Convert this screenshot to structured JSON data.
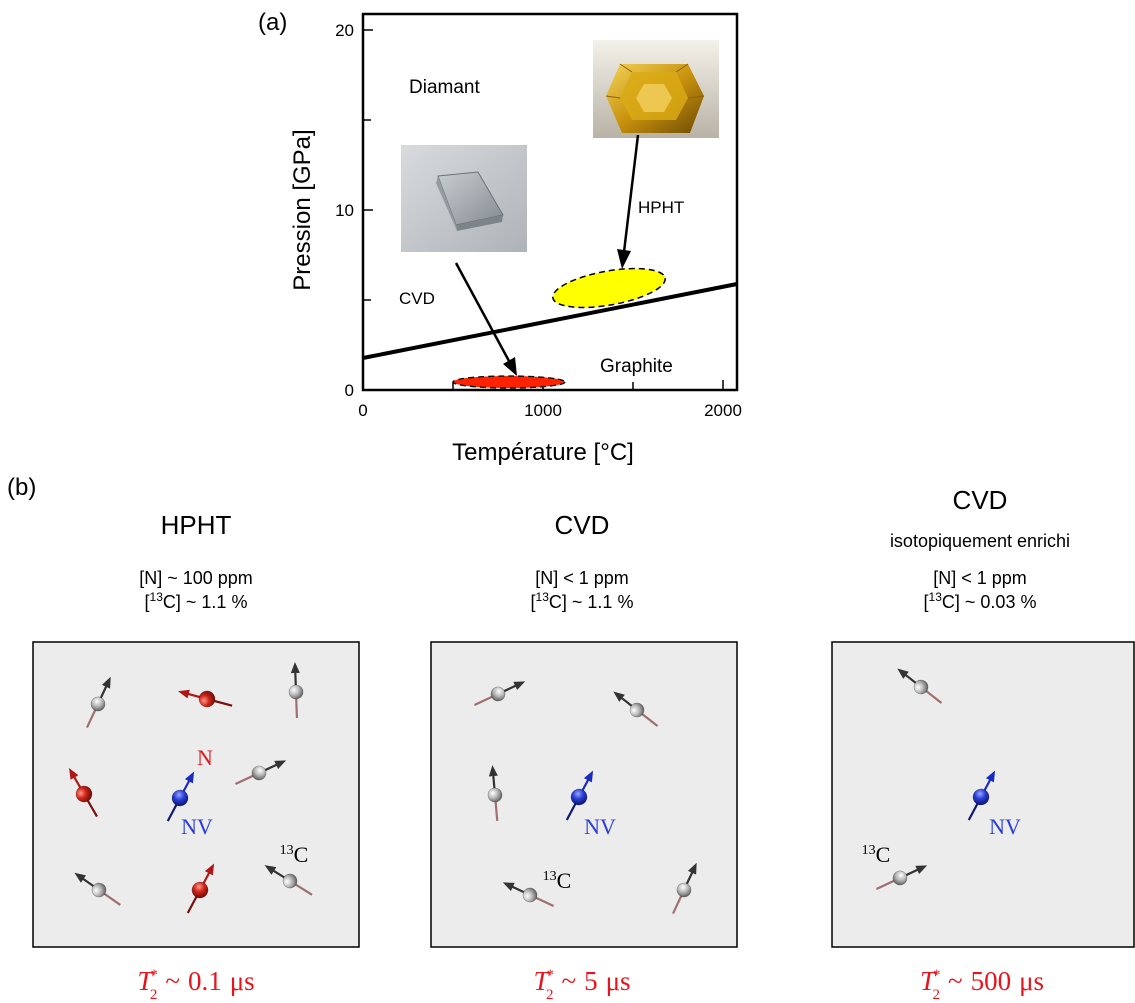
{
  "panel_a": {
    "label": "(a)",
    "xlabel": "Température [°C]",
    "ylabel": "Pression [GPa]",
    "x_ticks": [
      "0",
      "1000",
      "2000"
    ],
    "y_ticks": [
      "0",
      "10",
      "20"
    ],
    "region_diamond": "Diamant",
    "region_graphite": "Graphite",
    "label_hpht": "HPHT",
    "label_cvd": "CVD",
    "colors": {
      "hpht_region": "#ffff00",
      "cvd_region": "#ff2200",
      "boundary": "#000000"
    }
  },
  "panel_b": {
    "label": "(b)",
    "samples": [
      {
        "title": "HPHT",
        "subtitle": "",
        "n_line": "[N] ~ 100 ppm",
        "c13_prefix": "[",
        "c13_sup": "13",
        "c13_rest": "C] ~ 1.1 %",
        "t2_value": "0.1",
        "labels": {
          "n": "N",
          "nv": "NV",
          "c13_sup": "13",
          "c13_base": "C"
        }
      },
      {
        "title": "CVD",
        "subtitle": "",
        "n_line": "[N] < 1 ppm",
        "c13_prefix": "[",
        "c13_sup": "13",
        "c13_rest": "C] ~ 1.1 %",
        "t2_value": "5",
        "labels": {
          "nv": "NV",
          "c13_sup": "13",
          "c13_base": "C"
        }
      },
      {
        "title": "CVD",
        "subtitle": "isotopiquement enrichi",
        "n_line": "[N] < 1 ppm",
        "c13_prefix": "[",
        "c13_sup": "13",
        "c13_rest": "C] ~ 0.03 %",
        "t2_value": "500",
        "labels": {
          "nv": "NV",
          "c13_sup": "13",
          "c13_base": "C"
        }
      }
    ],
    "t2_symbol": "T",
    "t2_sub": "2",
    "t2_sup": "*",
    "t2_approx": "~",
    "t2_unit": "μs",
    "colors": {
      "nv": "#2a3fd8",
      "n": "#d62020",
      "c13": "#9a9a9a",
      "t2_text": "#e8141c",
      "box_fill": "#ececec"
    }
  }
}
